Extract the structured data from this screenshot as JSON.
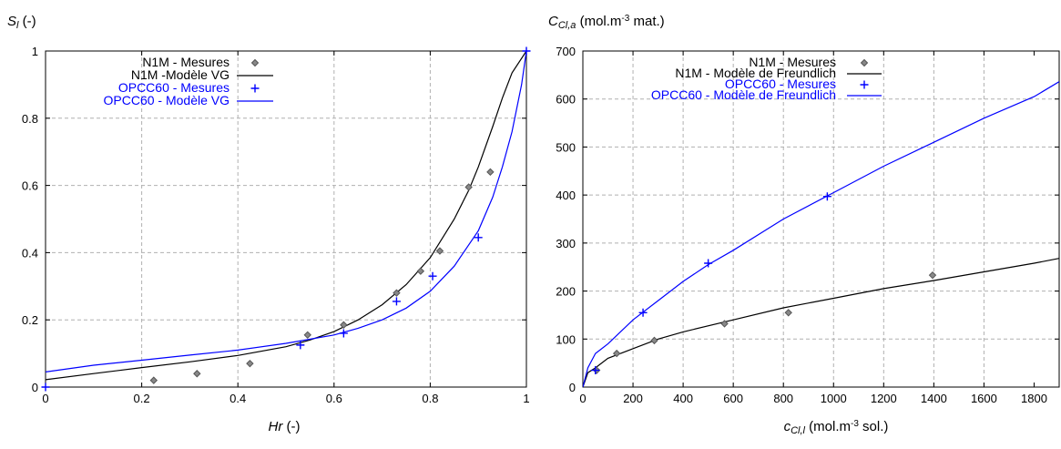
{
  "chart_data": [
    {
      "type": "line",
      "ylabel_main": "S",
      "ylabel_sub": "l",
      "ylabel_unit": " (-)",
      "xlabel_main": "Hr",
      "xlabel_unit": " (-)",
      "xlim": [
        0,
        1
      ],
      "ylim": [
        0,
        1
      ],
      "xticks": [
        0,
        0.2,
        0.4,
        0.6,
        0.8,
        1
      ],
      "xtick_labels": [
        "0",
        "0.2",
        "0.4",
        "0.6",
        "0.8",
        "1"
      ],
      "yticks": [
        0,
        0.2,
        0.4,
        0.6,
        0.8,
        1
      ],
      "ytick_labels": [
        "0",
        "0.2",
        "0.4",
        "0.6",
        "0.8",
        "1"
      ],
      "grid": true,
      "legend_position": "top-left",
      "series": [
        {
          "name": "N1M - Mesures",
          "kind": "markers",
          "marker": "diamond",
          "color": "#555555",
          "x": [
            0.225,
            0.315,
            0.425,
            0.545,
            0.62,
            0.73,
            0.78,
            0.82,
            0.88,
            0.925
          ],
          "y": [
            0.02,
            0.04,
            0.07,
            0.155,
            0.185,
            0.28,
            0.345,
            0.405,
            0.595,
            0.64
          ]
        },
        {
          "name": "N1M -Modèle VG",
          "kind": "line",
          "color": "#000000",
          "x": [
            0,
            0.1,
            0.2,
            0.3,
            0.4,
            0.5,
            0.55,
            0.6,
            0.65,
            0.7,
            0.75,
            0.8,
            0.85,
            0.88,
            0.9,
            0.93,
            0.95,
            0.97,
            1.0
          ],
          "y": [
            0.022,
            0.04,
            0.058,
            0.075,
            0.094,
            0.12,
            0.14,
            0.165,
            0.2,
            0.245,
            0.305,
            0.385,
            0.5,
            0.585,
            0.655,
            0.775,
            0.86,
            0.935,
            1.0
          ]
        },
        {
          "name": "OPCC60 - Mesures",
          "kind": "markers",
          "marker": "plus",
          "color": "#0000ff",
          "x": [
            0.0,
            0.53,
            0.62,
            0.73,
            0.805,
            0.9,
            1.0
          ],
          "y": [
            0.0,
            0.125,
            0.16,
            0.255,
            0.33,
            0.445,
            1.0
          ]
        },
        {
          "name": "OPCC60 - Modèle VG",
          "kind": "line",
          "color": "#0000ff",
          "x": [
            0,
            0.1,
            0.2,
            0.3,
            0.4,
            0.5,
            0.6,
            0.65,
            0.7,
            0.75,
            0.8,
            0.85,
            0.9,
            0.93,
            0.95,
            0.97,
            0.99,
            1.0
          ],
          "y": [
            0.045,
            0.065,
            0.08,
            0.095,
            0.11,
            0.13,
            0.155,
            0.175,
            0.2,
            0.235,
            0.285,
            0.36,
            0.465,
            0.565,
            0.655,
            0.76,
            0.9,
            1.0
          ]
        }
      ]
    },
    {
      "type": "line",
      "ylabel_main": "C",
      "ylabel_sub": "Cl,a",
      "ylabel_unit": " (mol.m",
      "ylabel_sup": "-3",
      "ylabel_tail": " mat.)",
      "xlabel_main": "c",
      "xlabel_sub": "Cl,l",
      "xlabel_unit": " (mol.m",
      "xlabel_sup": "-3",
      "xlabel_tail": " sol.)",
      "xlim": [
        0,
        1900
      ],
      "ylim": [
        0,
        700
      ],
      "xticks": [
        0,
        200,
        400,
        600,
        800,
        1000,
        1200,
        1400,
        1600,
        1800
      ],
      "xtick_labels": [
        "0",
        "200",
        "400",
        "600",
        "800",
        "1000",
        "1200",
        "1400",
        "1600",
        "1800"
      ],
      "yticks": [
        0,
        100,
        200,
        300,
        400,
        500,
        600,
        700
      ],
      "ytick_labels": [
        "0",
        "100",
        "200",
        "300",
        "400",
        "500",
        "600",
        "700"
      ],
      "grid": true,
      "legend_position": "top-left",
      "series": [
        {
          "name": "N1M - Mesures",
          "kind": "markers",
          "marker": "diamond",
          "color": "#555555",
          "x": [
            55,
            135,
            285,
            565,
            820,
            1395
          ],
          "y": [
            35,
            70,
            97,
            132,
            155,
            233
          ]
        },
        {
          "name": "N1M - Modèle de Freundlich",
          "kind": "line",
          "color": "#000000",
          "x": [
            0,
            20,
            50,
            100,
            200,
            300,
            400,
            600,
            800,
            1000,
            1200,
            1400,
            1600,
            1800,
            1900
          ],
          "y": [
            0,
            30,
            40,
            60,
            80,
            100,
            115,
            140,
            165,
            185,
            205,
            222,
            240,
            258,
            268
          ]
        },
        {
          "name": "OPCC60 - Mesures",
          "kind": "markers",
          "marker": "plus",
          "color": "#0000ff",
          "x": [
            50,
            240,
            500,
            975
          ],
          "y": [
            35,
            155,
            258,
            397
          ]
        },
        {
          "name": "OPCC60 - Modèle de Freundlich",
          "kind": "line",
          "color": "#0000ff",
          "x": [
            0,
            20,
            50,
            100,
            200,
            300,
            400,
            500,
            600,
            800,
            1000,
            1200,
            1400,
            1600,
            1800,
            1900
          ],
          "y": [
            0,
            40,
            70,
            90,
            140,
            180,
            220,
            255,
            285,
            350,
            405,
            460,
            510,
            560,
            605,
            636
          ]
        }
      ]
    }
  ]
}
